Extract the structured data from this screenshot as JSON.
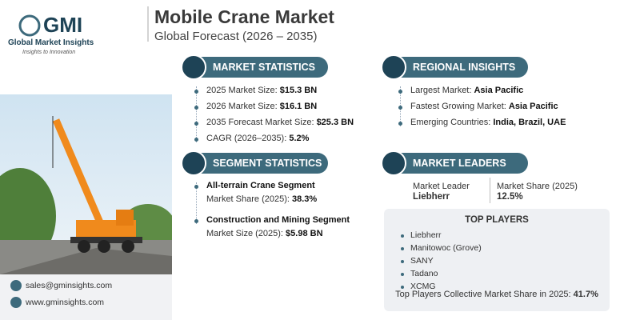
{
  "header": {
    "logo": "GMI",
    "company": "Global Market Insights",
    "tagline": "Insights to Innovation",
    "title": "Mobile Crane Market",
    "subtitle": "Global Forecast (2026 – 2035)"
  },
  "market_statistics": {
    "title": "MARKET STATISTICS",
    "items": [
      {
        "label": "2025 Market Size: ",
        "value": "$15.3 BN"
      },
      {
        "label": "2026 Market Size: ",
        "value": "$16.1 BN"
      },
      {
        "label": "2035 Forecast Market Size: ",
        "value": "$25.3 BN"
      },
      {
        "label": "CAGR (2026–2035): ",
        "value": "5.2%"
      }
    ]
  },
  "regional_insights": {
    "title": "REGIONAL INSIGHTS",
    "items": [
      {
        "label": "Largest Market: ",
        "value": "Asia Pacific"
      },
      {
        "label": "Fastest Growing Market: ",
        "value": "Asia Pacific"
      },
      {
        "label": "Emerging Countries: ",
        "value": "India, Brazil, UAE"
      }
    ]
  },
  "segment_statistics": {
    "title": "SEGMENT STATISTICS",
    "items": [
      {
        "name": "All-terrain Crane Segment",
        "label": "Market Share (2025): ",
        "value": "38.3%"
      },
      {
        "name": "Construction and Mining Segment",
        "label": "Market Size (2025): ",
        "value": "$5.98 BN"
      }
    ]
  },
  "market_leaders": {
    "title": "MARKET LEADERS",
    "leader_label": "Market Leader",
    "leader": "Liebherr",
    "share_label": "Market Share (2025)",
    "share": "12.5%"
  },
  "top_players": {
    "title": "TOP PLAYERS",
    "players": [
      "Liebherr",
      "Manitowoc (Grove)",
      "SANY",
      "Tadano",
      "XCMG"
    ],
    "collective_label": "Top Players Collective Market Share in 2025: ",
    "collective_value": "41.7%"
  },
  "contact": {
    "email": "sales@gminsights.com",
    "website": "www.gminsights.com"
  }
}
